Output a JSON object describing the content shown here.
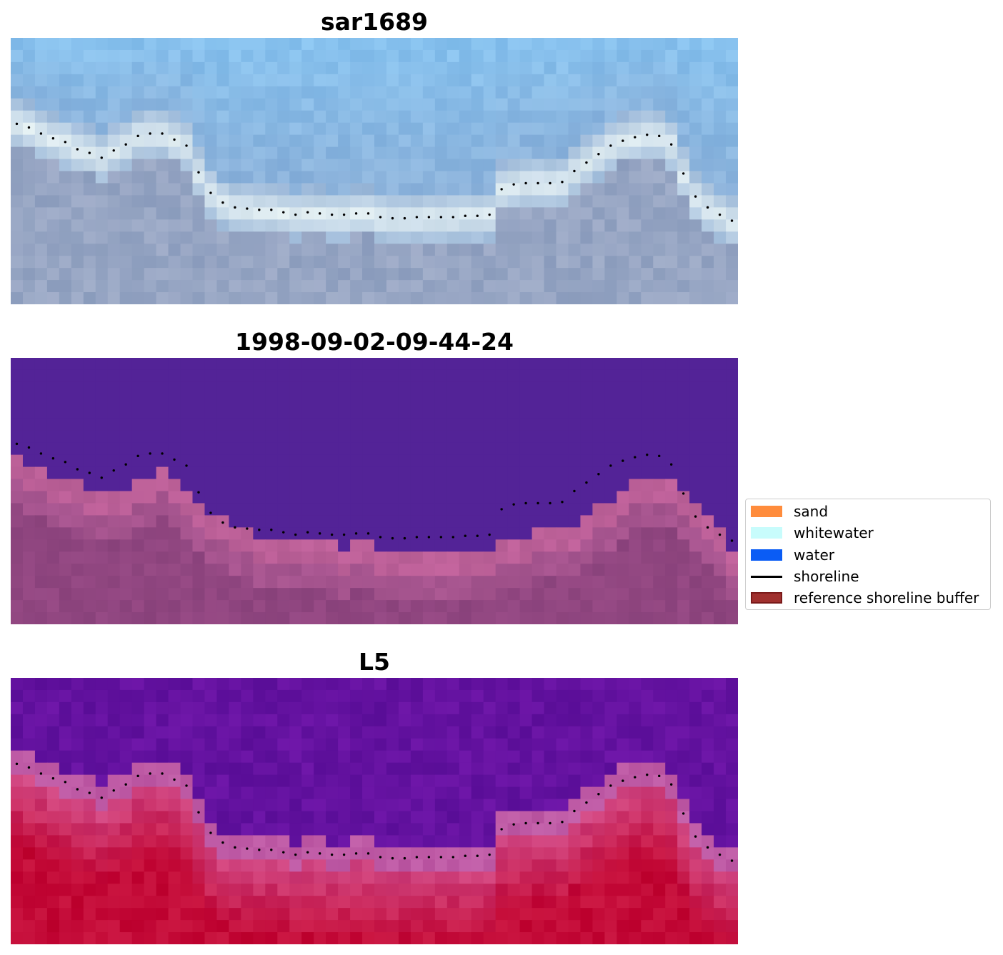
{
  "panels": [
    {
      "title": "sar1689",
      "style": "rgb"
    },
    {
      "title": "1998-09-02-09-44-24",
      "style": "classified"
    },
    {
      "title": "L5",
      "style": "ndwi"
    }
  ],
  "legend": {
    "items": [
      {
        "label": "sand",
        "kind": "patch",
        "color": "#ff8c3c",
        "border": "#ff8c3c"
      },
      {
        "label": "whitewater",
        "kind": "patch",
        "color": "#c8fcfc",
        "border": "#c8fcfc"
      },
      {
        "label": "water",
        "kind": "patch",
        "color": "#0a5cf5",
        "border": "#0a5cf5"
      },
      {
        "label": "shoreline",
        "kind": "line",
        "color": "#000000"
      },
      {
        "label": "reference shoreline buffer",
        "kind": "patch",
        "color": "#a0302e",
        "border": "#7a1a1a"
      }
    ]
  },
  "chart_data": {
    "type": "heatmap",
    "grid": {
      "cols": 60,
      "rows": 22
    },
    "shoreline": [
      [
        0.5,
        7.1
      ],
      [
        1.5,
        7.4
      ],
      [
        2.5,
        7.9
      ],
      [
        3.5,
        8.3
      ],
      [
        4.5,
        8.6
      ],
      [
        5.5,
        9.2
      ],
      [
        6.5,
        9.5
      ],
      [
        7.5,
        9.9
      ],
      [
        8.5,
        9.3
      ],
      [
        9.5,
        8.8
      ],
      [
        10.5,
        8.1
      ],
      [
        11.5,
        7.9
      ],
      [
        12.5,
        7.9
      ],
      [
        13.5,
        8.4
      ],
      [
        14.5,
        8.9
      ],
      [
        15.5,
        11.1
      ],
      [
        16.5,
        12.8
      ],
      [
        17.5,
        13.6
      ],
      [
        18.5,
        14.0
      ],
      [
        19.5,
        14.1
      ],
      [
        20.5,
        14.2
      ],
      [
        21.5,
        14.2
      ],
      [
        22.5,
        14.4
      ],
      [
        23.5,
        14.6
      ],
      [
        24.5,
        14.4
      ],
      [
        25.5,
        14.5
      ],
      [
        26.5,
        14.6
      ],
      [
        27.5,
        14.6
      ],
      [
        28.5,
        14.5
      ],
      [
        29.5,
        14.5
      ],
      [
        30.5,
        14.8
      ],
      [
        31.5,
        14.9
      ],
      [
        32.5,
        14.9
      ],
      [
        33.5,
        14.8
      ],
      [
        34.5,
        14.8
      ],
      [
        35.5,
        14.8
      ],
      [
        36.5,
        14.8
      ],
      [
        37.5,
        14.7
      ],
      [
        38.5,
        14.7
      ],
      [
        39.5,
        14.6
      ],
      [
        40.5,
        12.5
      ],
      [
        41.5,
        12.1
      ],
      [
        42.5,
        12.0
      ],
      [
        43.5,
        12.0
      ],
      [
        44.5,
        12.0
      ],
      [
        45.5,
        11.9
      ],
      [
        46.5,
        11.0
      ],
      [
        47.5,
        10.3
      ],
      [
        48.5,
        9.6
      ],
      [
        49.5,
        8.9
      ],
      [
        50.5,
        8.5
      ],
      [
        51.5,
        8.2
      ],
      [
        52.5,
        8.0
      ],
      [
        53.5,
        8.1
      ],
      [
        54.5,
        8.8
      ],
      [
        55.5,
        11.2
      ],
      [
        56.5,
        13.1
      ],
      [
        57.5,
        14.0
      ],
      [
        58.5,
        14.6
      ],
      [
        59.5,
        15.1
      ]
    ],
    "classified": {
      "water_color": "#532397",
      "land_boundary_row": [
        8,
        9,
        9,
        10,
        10,
        10,
        11,
        11,
        11,
        11,
        10,
        10,
        9,
        10,
        11,
        12,
        13,
        13,
        14,
        14,
        15,
        15,
        15,
        15,
        15,
        15,
        15,
        16,
        15,
        15,
        16,
        16,
        16,
        16,
        16,
        16,
        16,
        16,
        16,
        16,
        15,
        15,
        15,
        14,
        14,
        14,
        14,
        13,
        12,
        12,
        11,
        10,
        10,
        10,
        10,
        11,
        12,
        13,
        14,
        16
      ]
    }
  }
}
